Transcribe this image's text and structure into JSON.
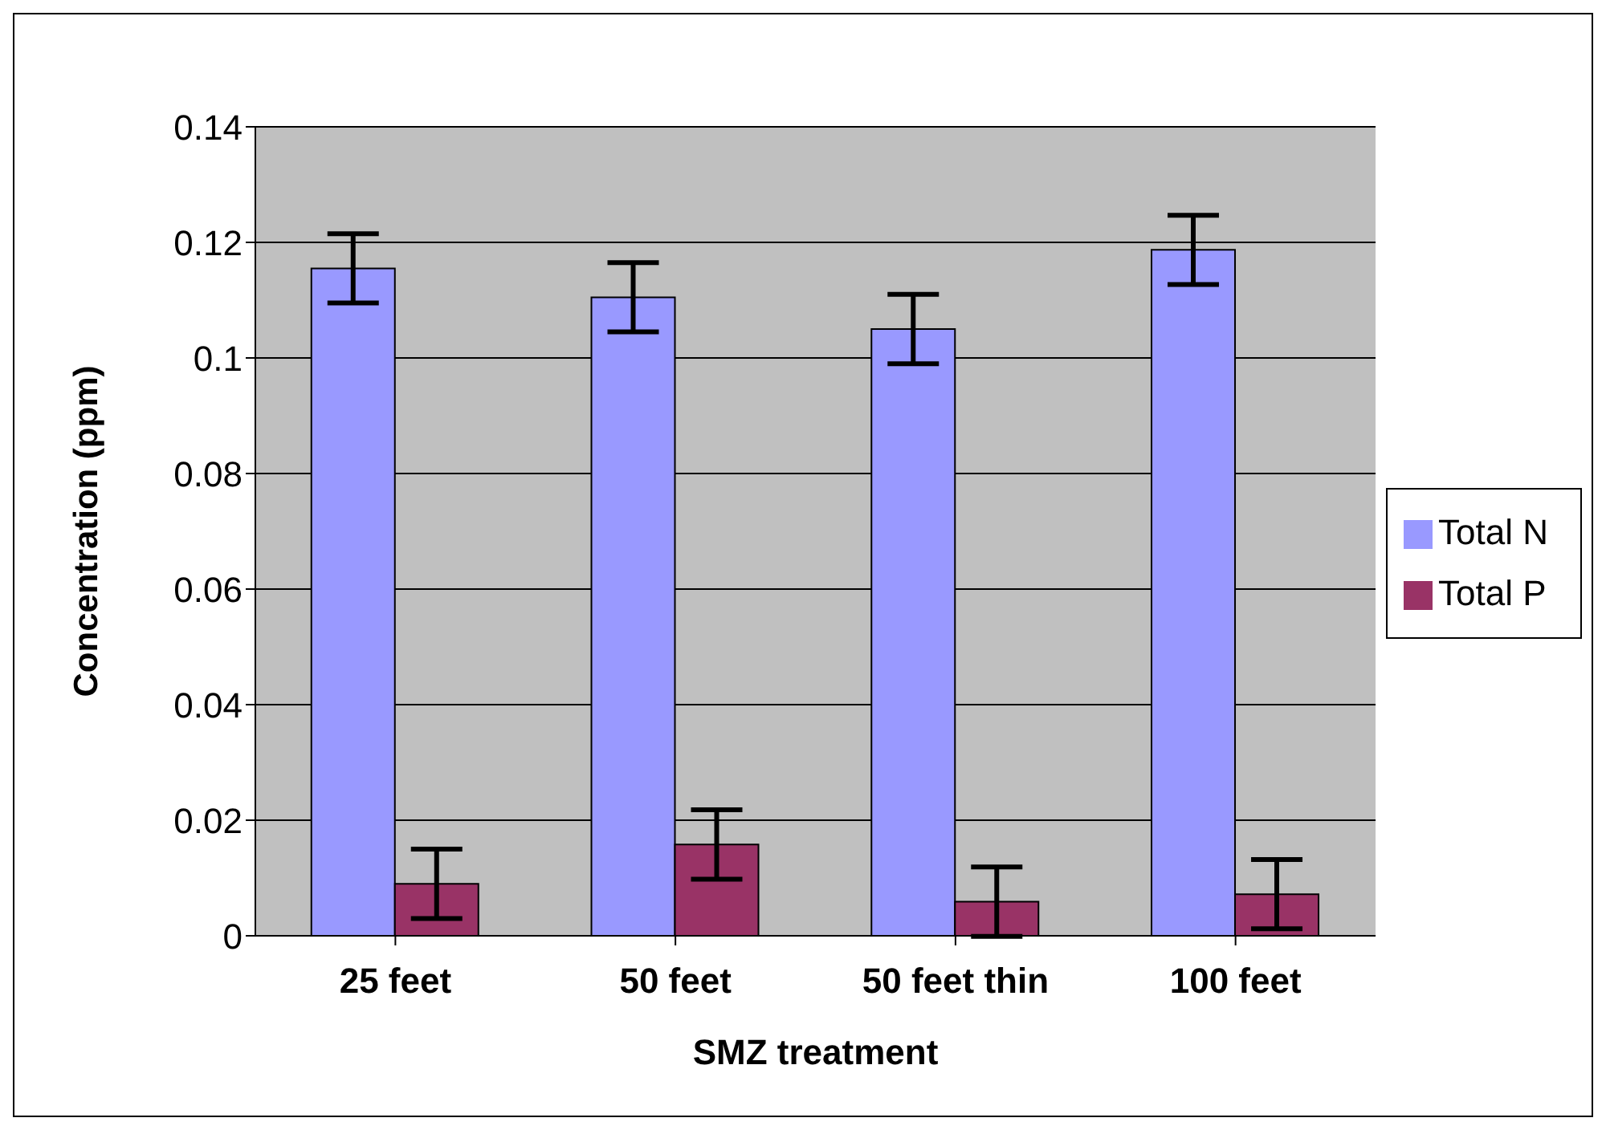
{
  "chart_data": {
    "type": "bar",
    "xlabel": "SMZ treatment",
    "ylabel": "Concentration (ppm)",
    "categories": [
      "25 feet",
      "50 feet",
      "50 feet thin",
      "100 feet"
    ],
    "series": [
      {
        "name": "Total N",
        "color": "#9999ff",
        "values": [
          0.1155,
          0.1105,
          0.105,
          0.1187
        ],
        "errors": [
          0.006,
          0.006,
          0.006,
          0.006
        ]
      },
      {
        "name": "Total P",
        "color": "#993366",
        "values": [
          0.009,
          0.0158,
          0.0059,
          0.0072
        ],
        "errors": [
          0.006,
          0.006,
          0.006,
          0.006
        ]
      }
    ],
    "ylim": [
      0,
      0.14
    ],
    "yticks": [
      0,
      0.02,
      0.04,
      0.06,
      0.08,
      0.1,
      0.12,
      0.14
    ],
    "grid": "y",
    "legend": "right"
  }
}
